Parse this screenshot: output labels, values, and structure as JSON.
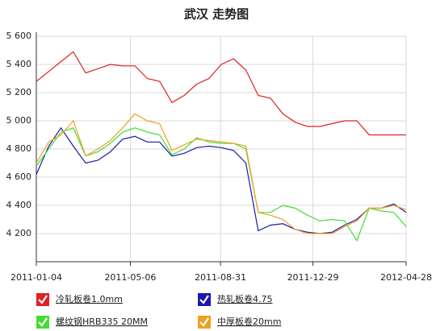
{
  "chart_data": {
    "type": "line",
    "title": "武汉 走势图",
    "x": [
      "2011-01-04",
      "2011-01-20",
      "2011-02-05",
      "2011-02-21",
      "2011-03-09",
      "2011-03-25",
      "2011-04-10",
      "2011-04-26",
      "2011-05-12",
      "2011-05-28",
      "2011-06-13",
      "2011-06-29",
      "2011-07-15",
      "2011-07-31",
      "2011-08-16",
      "2011-09-01",
      "2011-09-17",
      "2011-10-03",
      "2011-10-19",
      "2011-11-04",
      "2011-11-20",
      "2011-12-06",
      "2011-12-22",
      "2012-01-07",
      "2012-01-23",
      "2012-02-08",
      "2012-02-24",
      "2012-03-11",
      "2012-03-27",
      "2012-04-12",
      "2012-04-28"
    ],
    "xlim": [
      "2011-01-04",
      "2012-04-28"
    ],
    "xticks": [
      "2011-01-04",
      "2011-05-06",
      "2011-08-31",
      "2011-12-29",
      "2012-04-28"
    ],
    "ylim": [
      4000,
      5600
    ],
    "yticks": [
      {
        "value": 4200,
        "label": "4 200"
      },
      {
        "value": 4400,
        "label": "4 400"
      },
      {
        "value": 4600,
        "label": "4 600"
      },
      {
        "value": 4800,
        "label": "4 800"
      },
      {
        "value": 5000,
        "label": "5 000"
      },
      {
        "value": 5200,
        "label": "5 200"
      },
      {
        "value": 5400,
        "label": "5 400"
      },
      {
        "value": 5600,
        "label": "5 600"
      }
    ],
    "grid": true,
    "legend": "bottom",
    "series": [
      {
        "name": "冷轧板卷1.0mm",
        "color": "#dd2222",
        "values": [
          5280,
          5350,
          5420,
          5490,
          5340,
          5370,
          5400,
          5390,
          5390,
          5300,
          5280,
          5130,
          5180,
          5260,
          5300,
          5400,
          5440,
          5360,
          5180,
          5160,
          5050,
          4990,
          4960,
          4960,
          4980,
          5000,
          5000,
          4900,
          4900,
          4900,
          4900
        ]
      },
      {
        "name": "热轧板卷4.75",
        "color": "#1a1aaa",
        "values": [
          4620,
          4820,
          4950,
          4820,
          4700,
          4720,
          4780,
          4870,
          4890,
          4850,
          4850,
          4750,
          4770,
          4810,
          4820,
          4810,
          4790,
          4700,
          4220,
          4260,
          4270,
          4230,
          4210,
          4200,
          4210,
          4260,
          4300,
          4380,
          4380,
          4410,
          4350
        ]
      },
      {
        "name": "螺纹钢HRB335 20MM",
        "color": "#44dd33",
        "values": [
          4680,
          4800,
          4920,
          4950,
          4750,
          4780,
          4840,
          4920,
          4950,
          4920,
          4900,
          4760,
          4800,
          4880,
          4850,
          4840,
          4840,
          4800,
          4350,
          4350,
          4400,
          4380,
          4330,
          4290,
          4300,
          4290,
          4150,
          4380,
          4360,
          4350,
          4250
        ]
      },
      {
        "name": "中厚板卷20mm",
        "color": "#f0a020",
        "values": [
          4700,
          4850,
          4900,
          5000,
          4750,
          4800,
          4860,
          4950,
          5050,
          5000,
          4980,
          4790,
          4830,
          4870,
          4860,
          4850,
          4840,
          4820,
          4350,
          4330,
          4300,
          4230,
          4200,
          4200,
          4200,
          4250,
          4290,
          4380,
          4380,
          4400,
          4370
        ]
      }
    ]
  }
}
